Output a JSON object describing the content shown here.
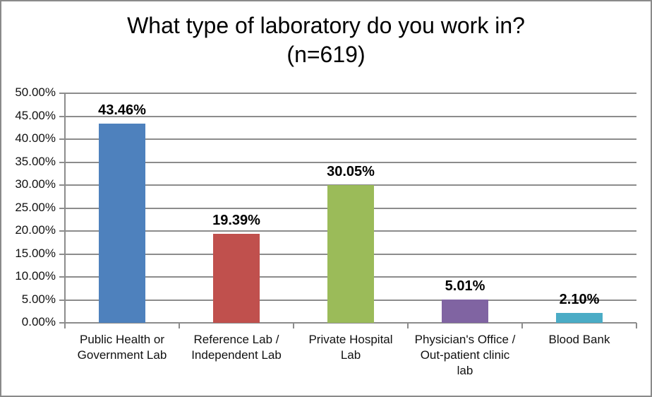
{
  "title": {
    "line1": "What type of laboratory do you work in?",
    "line2": "(n=619)"
  },
  "chart_data": {
    "type": "bar",
    "title": "What type of laboratory do you work in? (n=619)",
    "categories": [
      "Public Health or Government Lab",
      "Reference Lab / Independent Lab",
      "Private Hospital Lab",
      "Physician's Office / Out-patient clinic lab",
      "Blood Bank"
    ],
    "category_lines": [
      [
        "Public Health or",
        "Government Lab"
      ],
      [
        "Reference Lab /",
        "Independent Lab"
      ],
      [
        "Private Hospital",
        "Lab"
      ],
      [
        "Physician's Office /",
        "Out-patient clinic",
        "lab"
      ],
      [
        "Blood Bank"
      ]
    ],
    "values": [
      43.46,
      19.39,
      30.05,
      5.01,
      2.1
    ],
    "data_labels": [
      "43.46%",
      "19.39%",
      "30.05%",
      "5.01%",
      "2.10%"
    ],
    "bar_colors": [
      "#4E81BD",
      "#C0504D",
      "#9BBB59",
      "#8064A2",
      "#4BACC6"
    ],
    "xlabel": "",
    "ylabel": "",
    "ylim": [
      0,
      50
    ],
    "ytick_step": 5,
    "ytick_labels": [
      "0.00%",
      "5.00%",
      "10.00%",
      "15.00%",
      "20.00%",
      "25.00%",
      "30.00%",
      "35.00%",
      "40.00%",
      "45.00%",
      "50.00%"
    ],
    "grid": true,
    "legend": "none",
    "gridline_color": "#8C8C8C",
    "axis_color": "#8C8C8C",
    "text_color": "#111111"
  }
}
